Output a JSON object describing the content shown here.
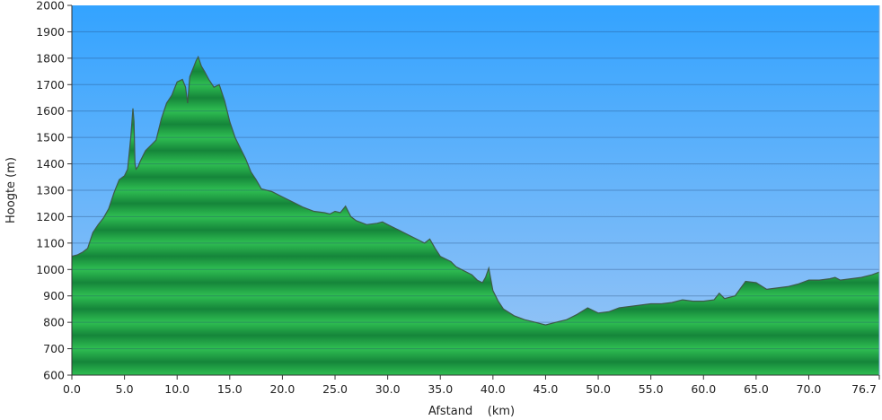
{
  "chart_data": {
    "type": "area",
    "title": "",
    "xlabel": "Afstand    (km)",
    "ylabel": "Hoogte (m)",
    "xlim": [
      0,
      76.7
    ],
    "ylim": [
      600,
      2000
    ],
    "x_ticks": [
      0,
      5,
      10,
      15,
      20,
      25,
      30,
      35,
      40,
      45,
      50,
      55,
      60,
      65,
      70,
      76.7
    ],
    "x_tick_labels": [
      "0.0",
      "5.0",
      "10.0",
      "15.0",
      "20.0",
      "25.0",
      "30.0",
      "35.0",
      "40.0",
      "45.0",
      "50.0",
      "55.0",
      "60.0",
      "65.0",
      "70.0",
      "76.7"
    ],
    "y_ticks": [
      600,
      700,
      800,
      900,
      1000,
      1100,
      1200,
      1300,
      1400,
      1500,
      1600,
      1700,
      1800,
      1900,
      2000
    ],
    "grid": true,
    "legend": "none",
    "colors": {
      "sky_top": "#33a3ff",
      "sky_bottom": "#9cc6f5",
      "fill_light": "#2fbf52",
      "fill_dark": "#15853a",
      "outline": "#3d5a48",
      "gridline": "#1f3f6e"
    },
    "series": [
      {
        "x": [
          0,
          0.5,
          1.0,
          1.5,
          2.0,
          2.5,
          3.0,
          3.5,
          4.0,
          4.5,
          5.0,
          5.3,
          5.6,
          5.8,
          5.9,
          6.0,
          6.1,
          6.3,
          6.5,
          7.0,
          7.5,
          8.0,
          8.5,
          9.0,
          9.5,
          10.0,
          10.5,
          10.8,
          11.0,
          11.2,
          11.4,
          11.6,
          11.8,
          12.0,
          12.3,
          12.6,
          13.0,
          13.5,
          14.0,
          14.5,
          15.0,
          15.5,
          16.0,
          16.5,
          17.0,
          17.5,
          18.0,
          19.0,
          20.0,
          21.0,
          22.0,
          23.0,
          24.0,
          24.5,
          25.0,
          25.5,
          26.0,
          26.5,
          27.0,
          28.0,
          29.0,
          29.5,
          30.0,
          31.0,
          32.0,
          33.0,
          33.5,
          34.0,
          34.5,
          35.0,
          36.0,
          36.5,
          37.0,
          38.0,
          38.5,
          39.0,
          39.3,
          39.6,
          40.0,
          40.5,
          41.0,
          42.0,
          43.0,
          44.0,
          45.0,
          46.0,
          47.0,
          48.0,
          49.0,
          50.0,
          51.0,
          52.0,
          53.0,
          54.0,
          55.0,
          56.0,
          57.0,
          58.0,
          59.0,
          60.0,
          61.0,
          61.5,
          62.0,
          63.0,
          64.0,
          65.0,
          66.0,
          67.0,
          68.0,
          69.0,
          70.0,
          71.0,
          72.0,
          72.5,
          73.0,
          74.0,
          75.0,
          76.0,
          76.7
        ],
        "y": [
          1050,
          1055,
          1065,
          1080,
          1140,
          1170,
          1195,
          1230,
          1290,
          1340,
          1355,
          1380,
          1500,
          1610,
          1560,
          1400,
          1380,
          1390,
          1410,
          1450,
          1470,
          1490,
          1570,
          1630,
          1660,
          1710,
          1720,
          1690,
          1630,
          1730,
          1750,
          1770,
          1790,
          1805,
          1770,
          1750,
          1720,
          1690,
          1700,
          1640,
          1560,
          1500,
          1460,
          1420,
          1370,
          1340,
          1305,
          1295,
          1275,
          1255,
          1235,
          1220,
          1215,
          1210,
          1220,
          1215,
          1240,
          1200,
          1185,
          1170,
          1175,
          1180,
          1170,
          1150,
          1130,
          1110,
          1100,
          1115,
          1080,
          1050,
          1030,
          1010,
          1000,
          980,
          960,
          950,
          970,
          1005,
          920,
          880,
          850,
          825,
          810,
          800,
          790,
          800,
          810,
          830,
          855,
          835,
          840,
          855,
          860,
          865,
          870,
          870,
          875,
          885,
          880,
          880,
          885,
          910,
          890,
          900,
          955,
          950,
          925,
          930,
          935,
          945,
          960,
          960,
          965,
          970,
          960,
          965,
          970,
          980,
          990
        ]
      }
    ]
  }
}
